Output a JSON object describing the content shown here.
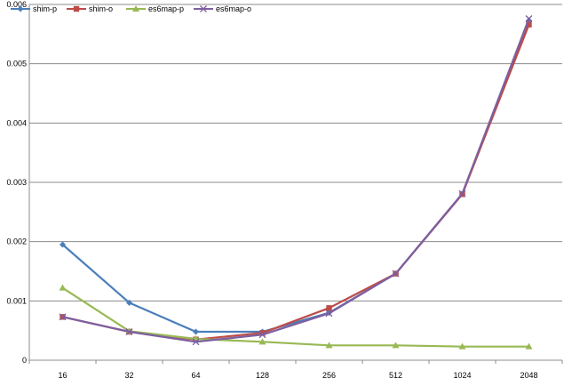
{
  "chart_data": {
    "type": "line",
    "categories": [
      "16",
      "32",
      "64",
      "128",
      "256",
      "512",
      "1024",
      "2048"
    ],
    "ylim": [
      0,
      0.006
    ],
    "yticks": [
      "0",
      "0.001",
      "0.002",
      "0.003",
      "0.004",
      "0.005",
      "0.006"
    ],
    "grid": true,
    "legend_position": "top-left",
    "series": [
      {
        "name": "shim-p",
        "color": "#4a7ebb",
        "marker": "diamond",
        "values": [
          0.00195,
          0.00097,
          0.00048,
          0.00048,
          0.0008,
          0.00146,
          0.0028,
          0.00573
        ]
      },
      {
        "name": "shim-o",
        "color": "#be4b48",
        "marker": "square",
        "values": [
          0.00073,
          0.00048,
          0.00035,
          0.00046,
          0.00088,
          0.00146,
          0.0028,
          0.00566
        ]
      },
      {
        "name": "es6map-p",
        "color": "#98b954",
        "marker": "triangle",
        "values": [
          0.00122,
          0.00049,
          0.00036,
          0.00031,
          0.00025,
          0.00025,
          0.00023,
          0.00023
        ]
      },
      {
        "name": "es6map-o",
        "color": "#7d5fa0",
        "marker": "x",
        "values": [
          0.00073,
          0.00048,
          0.00031,
          0.00043,
          0.00079,
          0.00146,
          0.00281,
          0.00576
        ]
      }
    ]
  }
}
